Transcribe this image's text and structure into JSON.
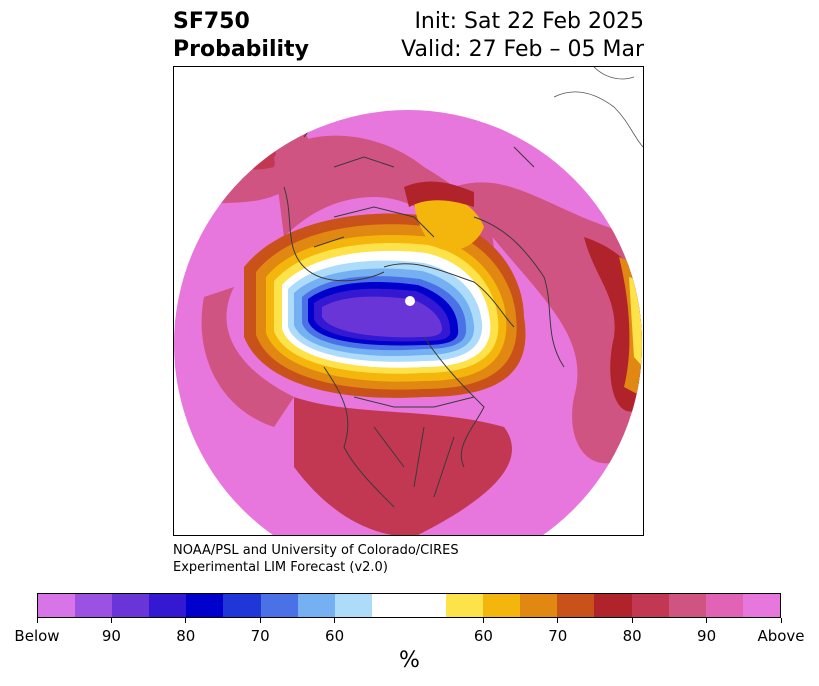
{
  "header": {
    "title_line1": "SF750",
    "title_line2": "Probability",
    "init_label": "Init: Sat 22 Feb 2025",
    "valid_label": "Valid: 27 Feb – 05 Mar"
  },
  "credit": {
    "line1": "NOAA/PSL and University of Colorado/CIRES",
    "line2": "Experimental LIM Forecast (v2.0)"
  },
  "colorbar": {
    "colors": [
      "#d774e8",
      "#9b52e2",
      "#6a35d6",
      "#3418d2",
      "#0000cc",
      "#2136d7",
      "#4a72e6",
      "#74b0f2",
      "#addcfb",
      "#ffffff",
      "#ffffff",
      "#fde24a",
      "#f4b60c",
      "#e08812",
      "#c8521a",
      "#b0232a",
      "#c23852",
      "#d05482",
      "#e063b6",
      "#e877dd"
    ],
    "tick_labels": [
      "Below",
      "90",
      "80",
      "70",
      "60",
      "60",
      "70",
      "80",
      "90",
      "Above"
    ],
    "unit": "%"
  }
}
